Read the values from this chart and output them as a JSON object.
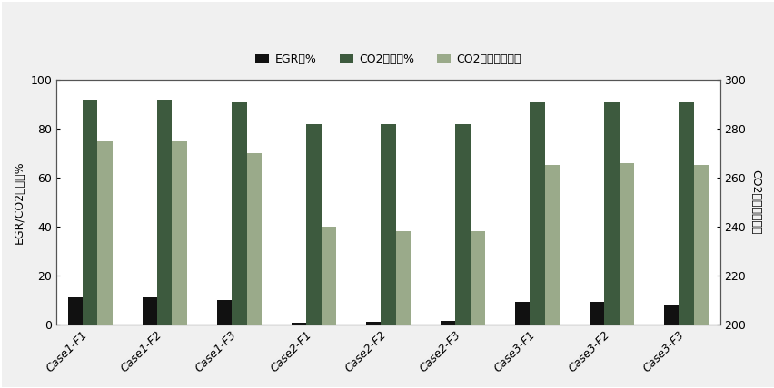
{
  "categories": [
    "Case1-F1",
    "Case1-F2",
    "Case1-F3",
    "Case2-F1",
    "Case2-F2",
    "Case2-F3",
    "Case3-F1",
    "Case3-F2",
    "Case3-F3"
  ],
  "EGR": [
    11,
    11,
    10,
    0.5,
    1,
    1.5,
    9,
    9,
    8
  ],
  "CO2_purity": [
    92,
    92,
    91,
    82,
    82,
    82,
    91,
    91,
    91
  ],
  "CO2_storage": [
    275,
    275,
    270,
    240,
    238,
    238,
    265,
    266,
    265
  ],
  "egr_color": "#111111",
  "co2_purity_color": "#3d5a3e",
  "co2_storage_color": "#9aaa8a",
  "ylabel_left": "EGR/CO2纯度，%",
  "ylabel_right": "CO2埋存量，万吨",
  "ylim_left": [
    0,
    100
  ],
  "ylim_right": [
    200,
    300
  ],
  "legend_labels": [
    "EGR，%",
    "CO2纯度，%",
    "CO2埋存量，万吨"
  ],
  "yticks_left": [
    0,
    20,
    40,
    60,
    80,
    100
  ],
  "yticks_right": [
    200,
    220,
    240,
    260,
    280,
    300
  ],
  "background_color": "#f0f0f0",
  "figure_width": 8.53,
  "figure_height": 4.28,
  "dpi": 100,
  "bar_width": 0.2
}
